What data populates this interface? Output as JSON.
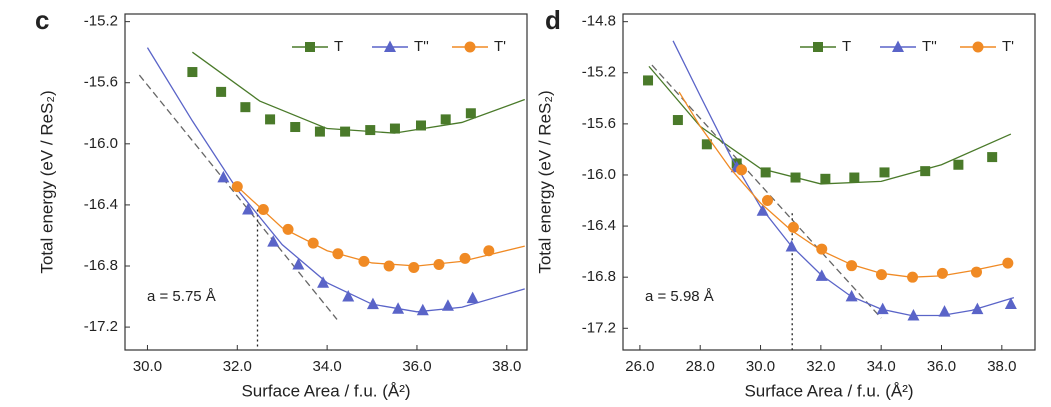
{
  "chart_data": [
    {
      "type": "scatter",
      "panel": "c",
      "xlabel": "Surface Area / f.u. (Å²)",
      "ylabel": "Total energy (eV / ReS₂)",
      "annotation": "a = 5.75 Å",
      "xlim": [
        29.5,
        38.45
      ],
      "ylim": [
        -17.35,
        -15.15
      ],
      "xticks": [
        {
          "value": 30,
          "label": "30.0"
        },
        {
          "value": 32,
          "label": "32.0"
        },
        {
          "value": 34,
          "label": "34.0"
        },
        {
          "value": 36,
          "label": "36.0"
        },
        {
          "value": 38,
          "label": "38.0"
        }
      ],
      "yticks": [
        -15.2,
        -15.6,
        {
          "value": -16,
          "label": "-16.0"
        },
        -16.4,
        -16.8,
        -17.2
      ],
      "legend": "upper right",
      "series": [
        {
          "name": "T",
          "color": "#4a7a2a",
          "marker": "square",
          "x": [
            31.0,
            31.64,
            32.18,
            32.73,
            33.29,
            33.84,
            34.4,
            34.96,
            35.51,
            36.09,
            36.64,
            37.2
          ],
          "values": [
            -15.53,
            -15.66,
            -15.76,
            -15.84,
            -15.89,
            -15.92,
            -15.92,
            -15.91,
            -15.9,
            -15.88,
            -15.84,
            -15.8
          ],
          "fit": {
            "x": [
              31.0,
              32.5,
              34.0,
              35.5,
              37.0,
              38.4
            ],
            "values": [
              -15.4,
              -15.72,
              -15.9,
              -15.93,
              -15.86,
              -15.71
            ]
          }
        },
        {
          "name": "T''",
          "color": "#5a64c8",
          "marker": "triangle",
          "x": [
            31.69,
            32.24,
            32.8,
            33.36,
            33.91,
            34.47,
            35.02,
            35.58,
            36.13,
            36.69,
            37.24
          ],
          "values": [
            -16.22,
            -16.43,
            -16.64,
            -16.79,
            -16.91,
            -17.0,
            -17.05,
            -17.08,
            -17.09,
            -17.06,
            -17.01
          ],
          "fit": {
            "x": [
              30.0,
              31.0,
              32.0,
              33.0,
              34.0,
              35.0,
              36.0,
              37.0,
              38.4
            ],
            "values": [
              -15.37,
              -15.85,
              -16.3,
              -16.66,
              -16.91,
              -17.05,
              -17.1,
              -17.07,
              -16.95
            ]
          }
        },
        {
          "name": "T'",
          "color": "#f08a24",
          "marker": "circle",
          "x": [
            32.0,
            32.58,
            33.13,
            33.69,
            34.24,
            34.82,
            35.38,
            35.93,
            36.49,
            37.07,
            37.6
          ],
          "values": [
            -16.28,
            -16.43,
            -16.56,
            -16.65,
            -16.72,
            -16.77,
            -16.8,
            -16.81,
            -16.79,
            -16.75,
            -16.7
          ],
          "fit": {
            "x": [
              32.0,
              33.0,
              34.0,
              35.0,
              36.0,
              37.0,
              38.4
            ],
            "values": [
              -16.28,
              -16.55,
              -16.7,
              -16.78,
              -16.8,
              -16.77,
              -16.67
            ]
          }
        }
      ],
      "tangent": {
        "x": [
          29.82,
          34.22
        ],
        "values": [
          -15.55,
          -17.15
        ]
      },
      "marker_x": 32.45,
      "marker_y": -16.43
    },
    {
      "type": "scatter",
      "panel": "d",
      "xlabel": "Surface Area / f.u. (Å²)",
      "ylabel": "Total energy (eV / ReS₂)",
      "annotation": "a = 5.98 Å",
      "xlim": [
        25.44,
        39.1
      ],
      "ylim": [
        -17.37,
        -14.74
      ],
      "xticks": [
        {
          "value": 26,
          "label": "26.0"
        },
        {
          "value": 28,
          "label": "28.0"
        },
        {
          "value": 30,
          "label": "30.0"
        },
        {
          "value": 32,
          "label": "32.0"
        },
        {
          "value": 34,
          "label": "34.0"
        },
        {
          "value": 36,
          "label": "36.0"
        },
        {
          "value": 38,
          "label": "38.0"
        }
      ],
      "yticks": [
        -14.8,
        -15.2,
        -15.6,
        {
          "value": -16,
          "label": "-16.0"
        },
        -16.4,
        -16.8,
        -17.2
      ],
      "legend": "upper right",
      "series": [
        {
          "name": "T",
          "color": "#4a7a2a",
          "marker": "square",
          "x": [
            26.27,
            27.26,
            28.22,
            29.21,
            30.17,
            31.16,
            32.15,
            33.11,
            34.11,
            35.46,
            36.56,
            37.68
          ],
          "values": [
            -15.26,
            -15.57,
            -15.76,
            -15.91,
            -15.98,
            -16.02,
            -16.03,
            -16.02,
            -15.98,
            -15.97,
            -15.92,
            -15.86
          ],
          "fit": {
            "x": [
              26.3,
              28.0,
              30.0,
              32.0,
              34.0,
              36.0,
              38.3
            ],
            "values": [
              -15.15,
              -15.62,
              -15.95,
              -16.07,
              -16.05,
              -15.92,
              -15.68
            ]
          }
        },
        {
          "name": "T''",
          "color": "#5a64c8",
          "marker": "triangle",
          "x": [
            29.21,
            30.07,
            31.03,
            32.03,
            33.02,
            34.05,
            35.07,
            36.1,
            37.19,
            38.3
          ],
          "values": [
            -15.94,
            -16.28,
            -16.56,
            -16.79,
            -16.95,
            -17.05,
            -17.1,
            -17.07,
            -17.05,
            -17.01
          ],
          "fit": {
            "x": [
              27.1,
              28.0,
              29.0,
              30.0,
              31.0,
              32.0,
              33.0,
              34.0,
              35.0,
              36.0,
              37.0,
              38.4
            ],
            "values": [
              -14.95,
              -15.38,
              -15.85,
              -16.25,
              -16.55,
              -16.78,
              -16.95,
              -17.05,
              -17.1,
              -17.1,
              -17.06,
              -16.96
            ]
          }
        },
        {
          "name": "T'",
          "color": "#f08a24",
          "marker": "circle",
          "x": [
            29.37,
            30.23,
            31.09,
            32.03,
            33.02,
            34.01,
            35.04,
            36.03,
            37.16,
            38.2
          ],
          "values": [
            -15.96,
            -16.2,
            -16.41,
            -16.58,
            -16.71,
            -16.78,
            -16.8,
            -16.77,
            -16.76,
            -16.69
          ],
          "fit": {
            "x": [
              27.3,
              28.0,
              29.0,
              30.0,
              31.0,
              32.0,
              33.0,
              34.0,
              35.0,
              36.0,
              37.0,
              38.2
            ],
            "values": [
              -15.35,
              -15.62,
              -15.95,
              -16.22,
              -16.43,
              -16.59,
              -16.7,
              -16.77,
              -16.8,
              -16.79,
              -16.75,
              -16.69
            ]
          }
        }
      ],
      "tangent": {
        "x": [
          26.4,
          34.0
        ],
        "values": [
          -15.14,
          -17.12
        ]
      },
      "marker_x": 31.05,
      "marker_y": -16.3
    }
  ]
}
